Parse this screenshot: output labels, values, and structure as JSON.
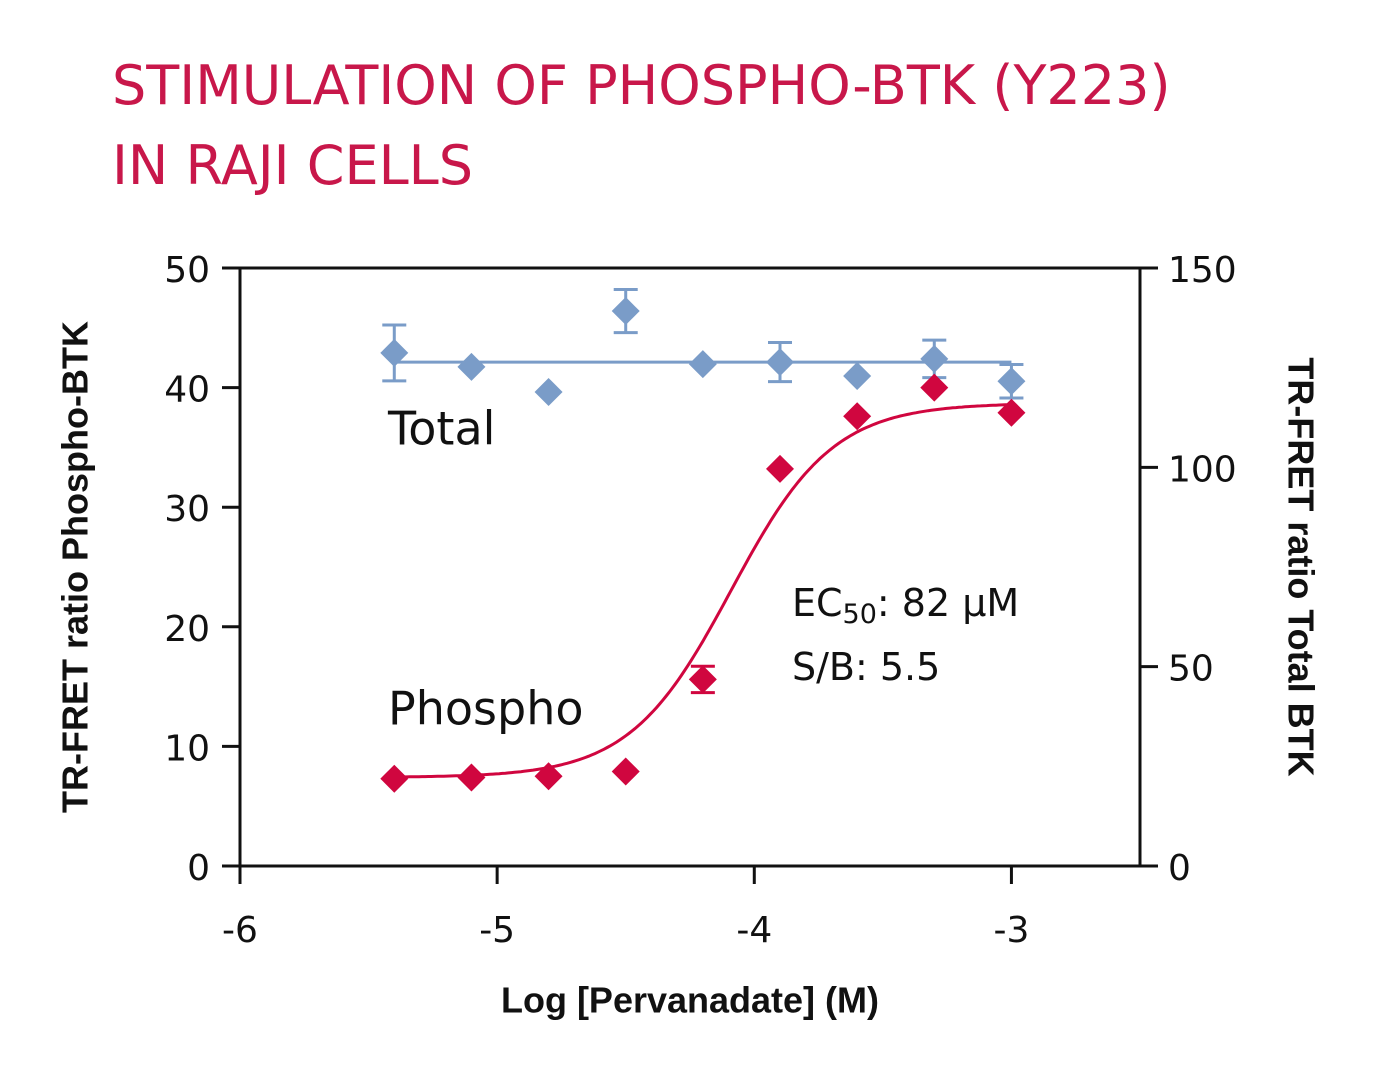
{
  "chart_data": {
    "type": "scatter",
    "title": [
      "STIMULATION OF PHOSPHO-BTK (Y223)",
      "IN RAJI CELLS"
    ],
    "x_label": "Log [Pervanadate] (M)",
    "y_label": "TR-FRET ratio Phospho-BTK",
    "y2_label": "TR-FRET ratio Total BTK",
    "xlim": [
      -6,
      -2.5
    ],
    "xticks": [
      -6,
      -5,
      -4,
      -3
    ],
    "ylim": [
      0,
      50
    ],
    "yticks": [
      0,
      10,
      20,
      30,
      40,
      50
    ],
    "y2lim": [
      0,
      150
    ],
    "y2ticks": [
      0,
      50,
      100,
      150
    ],
    "x": [
      -5.4,
      -5.1,
      -4.8,
      -4.5,
      -4.2,
      -3.9,
      -3.6,
      -3.3,
      -3.0
    ],
    "series": [
      {
        "name": "Total",
        "color": "#7a9cc8",
        "axis": "y2",
        "values": [
          128.7,
          125.2,
          118.9,
          139.2,
          125.9,
          126.4,
          122.9,
          127.2,
          121.6
        ],
        "errors": [
          7,
          null,
          null,
          5.4,
          null,
          4.9,
          null,
          4.7,
          4.2
        ],
        "fit": {
          "level": 126.4
        }
      },
      {
        "name": "Phospho",
        "color": "#d0063f",
        "values": [
          7.3,
          7.4,
          7.5,
          7.9,
          15.6,
          33.2,
          37.6,
          40.0,
          37.9
        ],
        "errors": [
          null,
          null,
          null,
          null,
          1.1,
          null,
          null,
          null,
          null
        ],
        "fit": {
          "bottom": 7.4,
          "top": 38.7,
          "log_ec50": -4.09,
          "hill": 2.2
        }
      }
    ],
    "annotations": [
      [
        "EC",
        "50",
        ": 82 µM"
      ],
      [
        "S/B: 5.5"
      ]
    ]
  }
}
